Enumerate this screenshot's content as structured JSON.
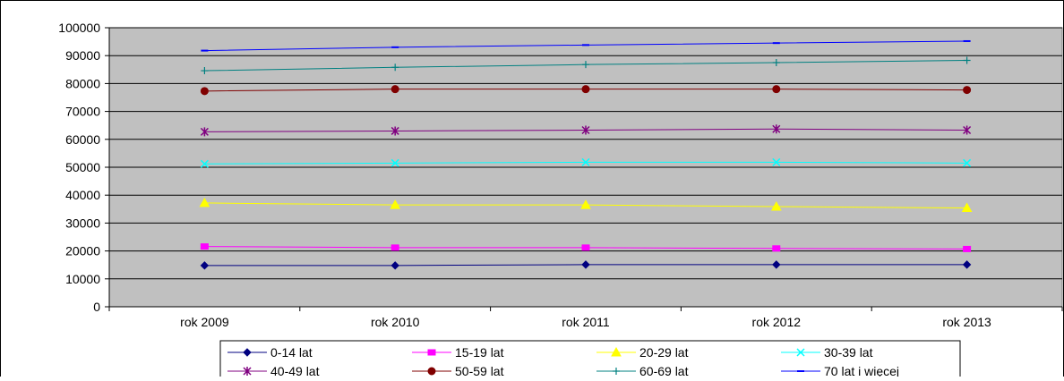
{
  "chart_data": {
    "type": "line",
    "categories": [
      "rok 2009",
      "rok 2010",
      "rok 2011",
      "rok 2012",
      "rok 2013"
    ],
    "ylim": [
      0,
      100000
    ],
    "yticks": [
      0,
      10000,
      20000,
      30000,
      40000,
      50000,
      60000,
      70000,
      80000,
      90000,
      100000
    ],
    "grid": true,
    "legend": "bottom",
    "plot_background": "#c0c0c0",
    "series": [
      {
        "name": "0-14 lat",
        "color": "#000080",
        "marker": "diamond",
        "values": [
          14800,
          14800,
          15100,
          15100,
          15100
        ]
      },
      {
        "name": "15-19 lat",
        "color": "#ff00ff",
        "marker": "square",
        "values": [
          21600,
          21200,
          21200,
          20900,
          20700
        ]
      },
      {
        "name": "20-29 lat",
        "color": "#ffff00",
        "marker": "triangle",
        "values": [
          37200,
          36500,
          36500,
          35900,
          35400
        ]
      },
      {
        "name": "30-39 lat",
        "color": "#00ffff",
        "marker": "x",
        "values": [
          51200,
          51500,
          51800,
          51800,
          51500
        ]
      },
      {
        "name": "40-49 lat",
        "color": "#800080",
        "marker": "star",
        "values": [
          62700,
          63000,
          63300,
          63700,
          63300
        ]
      },
      {
        "name": "50-59 lat",
        "color": "#800000",
        "marker": "circle",
        "values": [
          77300,
          78000,
          78000,
          78000,
          77700
        ]
      },
      {
        "name": "60-69 lat",
        "color": "#008080",
        "marker": "plus",
        "values": [
          84600,
          85800,
          86800,
          87500,
          88300
        ]
      },
      {
        "name": "70 lat i więcej",
        "color": "#0000ff",
        "marker": "dash",
        "values": [
          91800,
          93000,
          93800,
          94500,
          95200
        ]
      }
    ]
  }
}
